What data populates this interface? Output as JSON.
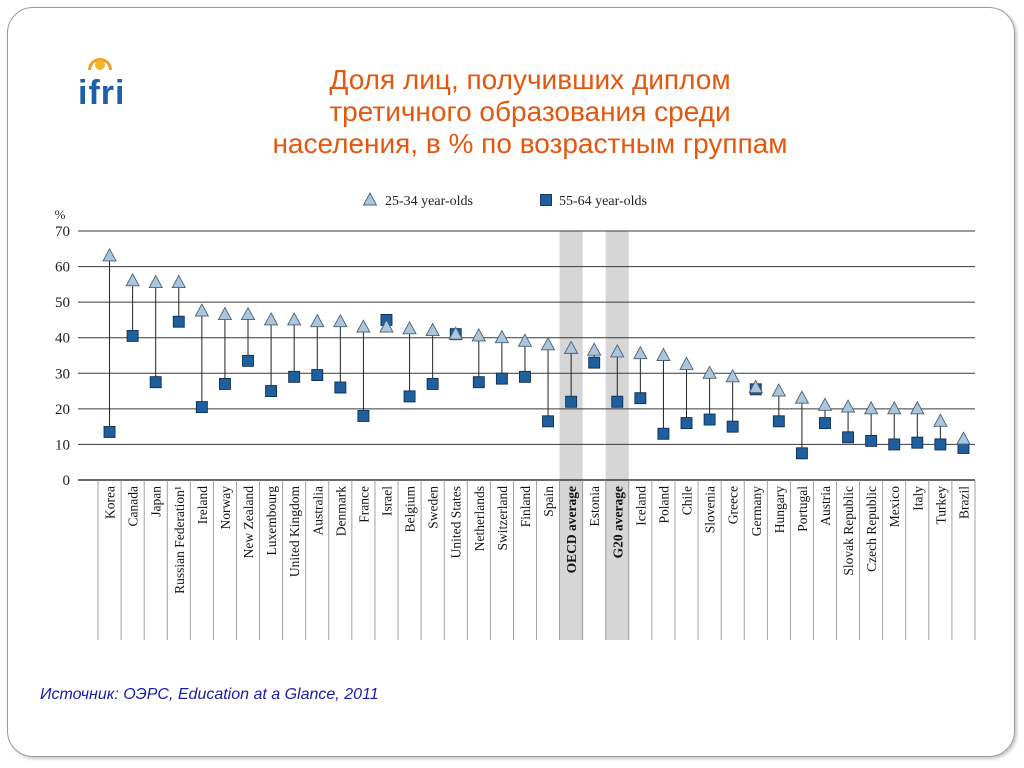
{
  "slide": {
    "title_lines": [
      "Доля лиц, получивших диплом",
      "третичного образования среди",
      "населения, в % по возрастным группам"
    ],
    "logo_text": "ifri",
    "source": "Источник: ОЭРС, Education at a Glance, 2011",
    "colors": {
      "title": "#e4570e",
      "source": "#1a1aa8",
      "triangle_fill": "#a9c6df",
      "square_fill": "#1f5f9e",
      "highlight_band": "#d6d6d6"
    }
  },
  "chart_data": {
    "type": "scatter",
    "title": "",
    "xlabel": "",
    "ylabel": "%",
    "ylim": [
      0,
      70
    ],
    "yticks": [
      0,
      10,
      20,
      30,
      40,
      50,
      60,
      70
    ],
    "grid": true,
    "legend_position": "top-center",
    "highlighted": [
      "OECD average",
      "G20 average"
    ],
    "categories": [
      "Korea",
      "Canada",
      "Japan",
      "Russian Federation¹",
      "Ireland",
      "Norway",
      "New Zealand",
      "Luxembourg",
      "United Kingdom",
      "Australia",
      "Denmark",
      "France",
      "Israel",
      "Belgium",
      "Sweden",
      "United States",
      "Netherlands",
      "Switzerland",
      "Finland",
      "Spain",
      "OECD average",
      "Estonia",
      "G20 average",
      "Iceland",
      "Poland",
      "Chile",
      "Slovenia",
      "Greece",
      "Germany",
      "Hungary",
      "Portugal",
      "Austria",
      "Slovak Republic",
      "Czech Republic",
      "Mexico",
      "Italy",
      "Turkey",
      "Brazil"
    ],
    "series": [
      {
        "name": "25-34 year-olds",
        "marker": "triangle",
        "values": [
          63,
          56,
          55.5,
          55.5,
          47.5,
          46.5,
          46.5,
          45,
          45,
          44.5,
          44.5,
          43,
          43,
          42.5,
          42,
          41,
          40.5,
          40,
          39,
          38,
          37,
          36.5,
          36,
          35.5,
          35,
          32.5,
          30,
          29,
          26,
          25,
          23,
          21,
          20.5,
          20,
          20,
          20,
          16.5,
          11.5
        ]
      },
      {
        "name": "55-64 year-olds",
        "marker": "square",
        "values": [
          13.5,
          40.5,
          27.5,
          44.5,
          20.5,
          27,
          33.5,
          25,
          29,
          29.5,
          26,
          18,
          45,
          23.5,
          27,
          41,
          27.5,
          28.5,
          29,
          16.5,
          22,
          33,
          22,
          23,
          13,
          16,
          17,
          15,
          25.5,
          16.5,
          7.5,
          16,
          12,
          11,
          10,
          10.5,
          10,
          9
        ]
      }
    ]
  }
}
